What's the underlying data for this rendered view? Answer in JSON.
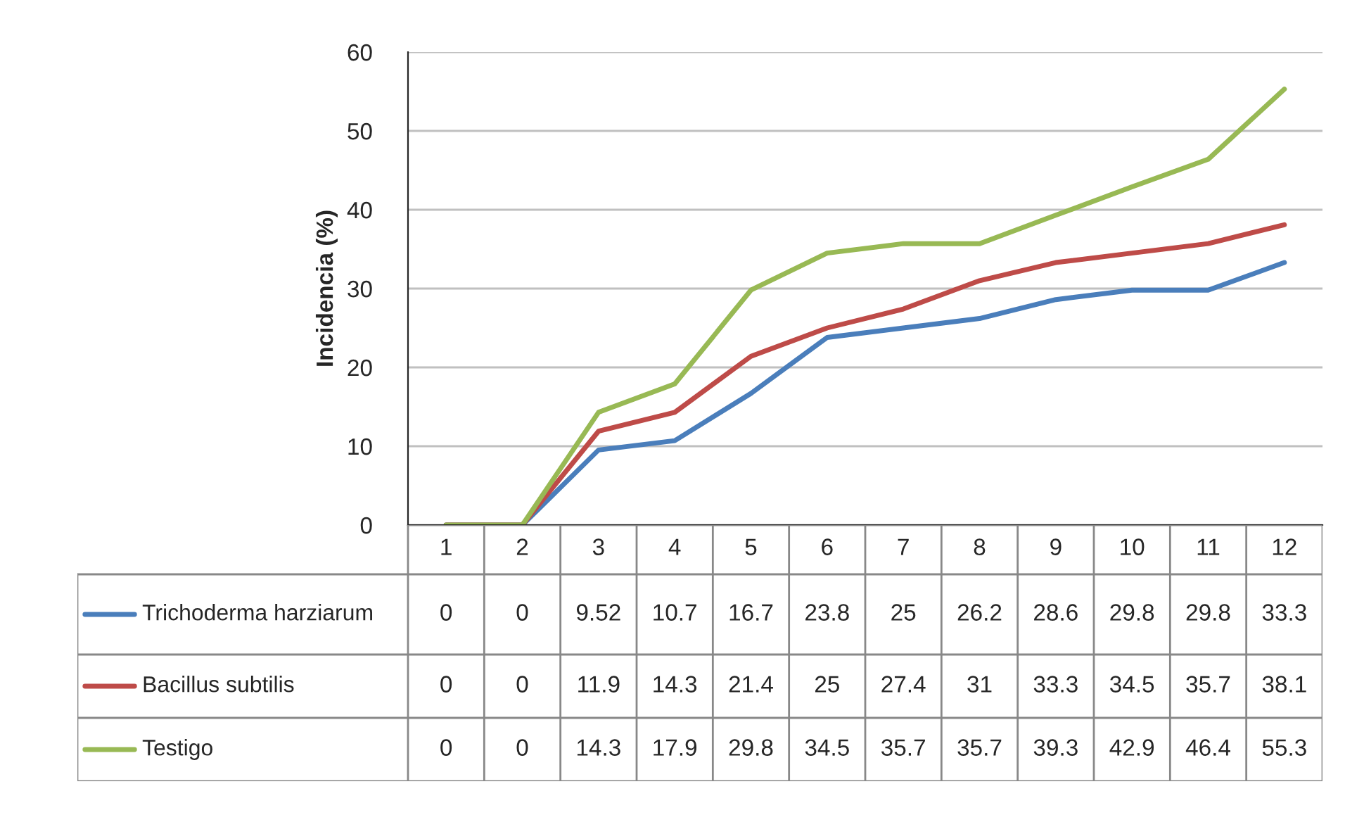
{
  "chart_data": {
    "type": "line",
    "ylabel": "Incidencia (%)",
    "categories": [
      "1",
      "2",
      "3",
      "4",
      "5",
      "6",
      "7",
      "8",
      "9",
      "10",
      "11",
      "12"
    ],
    "series": [
      {
        "name": "Trichoderma harziarum",
        "color": "#4a7ebb",
        "values": [
          0,
          0,
          9.52,
          10.7,
          16.7,
          23.8,
          25,
          26.2,
          28.6,
          29.8,
          29.8,
          33.3
        ]
      },
      {
        "name": "Bacillus subtilis",
        "color": "#be4b48",
        "values": [
          0,
          0,
          11.9,
          14.3,
          21.4,
          25,
          27.4,
          31,
          33.3,
          34.5,
          35.7,
          38.1
        ]
      },
      {
        "name": "Testigo",
        "color": "#98b954",
        "values": [
          0,
          0,
          14.3,
          17.9,
          29.8,
          34.5,
          35.7,
          35.7,
          39.3,
          42.9,
          46.4,
          55.3
        ]
      }
    ],
    "ylim": [
      0,
      60
    ],
    "yticks": [
      0,
      10,
      20,
      30,
      40,
      50,
      60
    ],
    "grid": "y",
    "legend": "bottom",
    "data_labels": true,
    "marker": "none",
    "line_style": "solid"
  }
}
